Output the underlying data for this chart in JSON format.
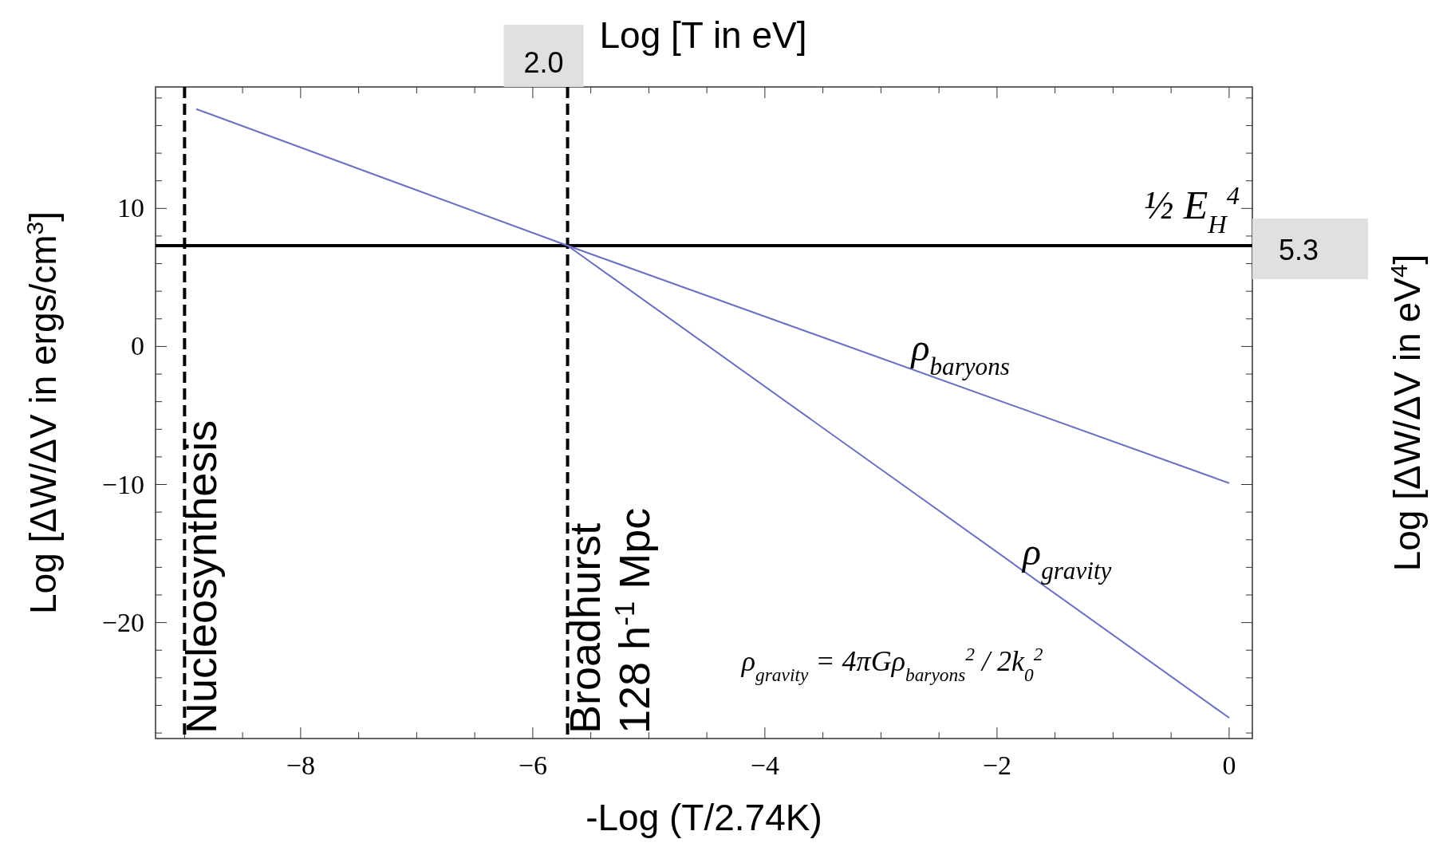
{
  "chart_data": {
    "type": "line",
    "xlabel": "-Log (T/2.74K)",
    "ylabel": "Log [ΔW/ΔV in ergs/cm$^{3}$]",
    "x2label": "Log [T in eV]",
    "y2label": "Log [ΔW/ΔV in eV$^{4}$]",
    "xlim": [
      -9.25,
      0.2
    ],
    "ylim": [
      -28.4,
      18.8
    ],
    "xticks": [
      {
        "value": -9,
        "label": null
      },
      {
        "value": -8.5,
        "label": null
      },
      -8,
      {
        "value": -7.5,
        "label": null
      },
      {
        "value": -7,
        "label": null
      },
      {
        "value": -6.5,
        "label": null
      },
      -6,
      {
        "value": -5.5,
        "label": null
      },
      {
        "value": -5,
        "label": null
      },
      {
        "value": -4.5,
        "label": null
      },
      -4,
      {
        "value": -3.5,
        "label": null
      },
      {
        "value": -3,
        "label": null
      },
      {
        "value": -2.5,
        "label": null
      },
      -2,
      {
        "value": -1.5,
        "label": null
      },
      {
        "value": -1,
        "label": null
      },
      {
        "value": -0.5,
        "label": null
      },
      0
    ],
    "yticks": [
      {
        "value": -28,
        "label": null
      },
      {
        "value": -26,
        "label": null
      },
      {
        "value": -24,
        "label": null
      },
      {
        "value": -22,
        "label": null
      },
      -20,
      {
        "value": -18,
        "label": null
      },
      {
        "value": -16,
        "label": null
      },
      {
        "value": -14,
        "label": null
      },
      {
        "value": -12,
        "label": null
      },
      -10,
      {
        "value": -8,
        "label": null
      },
      {
        "value": -6,
        "label": null
      },
      {
        "value": -4,
        "label": null
      },
      {
        "value": -2,
        "label": null
      },
      0,
      {
        "value": 2,
        "label": null
      },
      {
        "value": 4,
        "label": null
      },
      {
        "value": 6,
        "label": null
      },
      {
        "value": 8,
        "label": null
      },
      10,
      {
        "value": 12,
        "label": null
      },
      {
        "value": 14,
        "label": null
      },
      {
        "value": 16,
        "label": null
      },
      {
        "value": 18,
        "label": null
      }
    ],
    "series": [
      {
        "name": "ρ$_{baryons}$",
        "color": "#6b6fbf",
        "x": [
          -8.9,
          -5.7,
          0
        ],
        "values": [
          17.2,
          7.3,
          -9.9
        ]
      },
      {
        "name": "ρ$_{gravity}$",
        "color": "#6b6fbf",
        "x": [
          -5.7,
          0
        ],
        "values": [
          7.3,
          -26.9
        ]
      }
    ],
    "ref_lines": [
      {
        "axis": "x",
        "value": -9.0,
        "label": "Nucleosynthesis",
        "color": "#000000",
        "line_style": "dashed"
      },
      {
        "axis": "x",
        "value": -5.7,
        "label": "Broadhurst\n128 h$^{-1}$ Mpc",
        "color": "#000000",
        "line_style": "dashed"
      },
      {
        "axis": "y",
        "value": 7.3,
        "label": "½ E$_{H}$$^{4}$",
        "color": "#000000",
        "line_style": "solid"
      }
    ],
    "annotations": [
      "ρ$_{gravity}$ = 4πGρ$_{baryons}$$^{2}$ / 2k$_{0}$$^{2}$",
      {
        "text": "2.0",
        "x": -5.7,
        "y": 18.8
      },
      {
        "text": "5.3",
        "x": 0.2,
        "y": 7.3
      }
    ],
    "grid": false
  }
}
